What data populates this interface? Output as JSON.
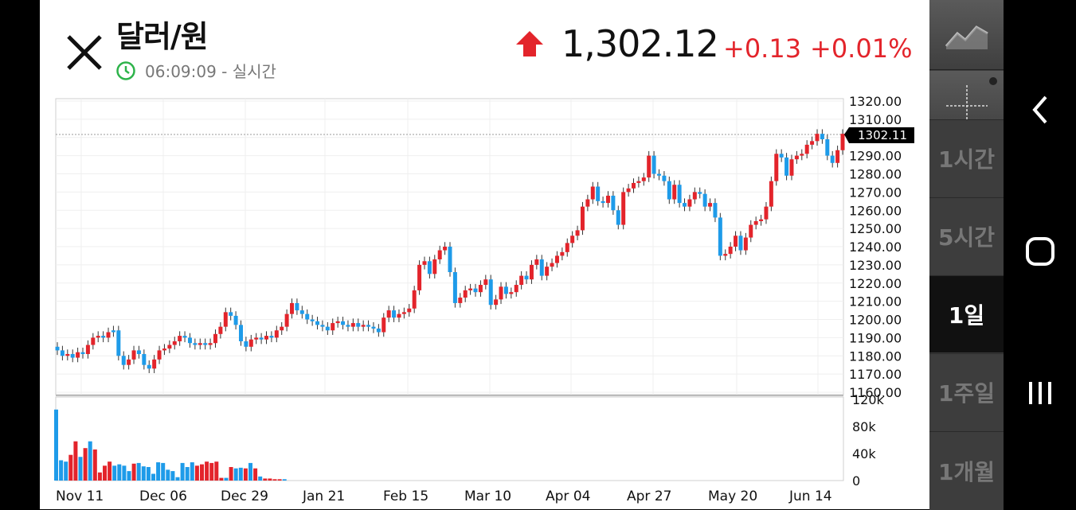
{
  "header": {
    "title": "달러/원",
    "time": "06:09:09",
    "time_suffix": " - 실시간",
    "price": "1,302.12",
    "change": "+0.13",
    "change_pct": "+0.01%"
  },
  "colors": {
    "up": "#e3242b",
    "down": "#1e9be9",
    "clock": "#2db34a"
  },
  "icons": [
    "close-icon",
    "clock-icon",
    "up-arrow-icon",
    "line-chart-icon",
    "crosshair-icon",
    "back-icon",
    "home-icon",
    "recent-apps-icon"
  ],
  "side_menu": {
    "items": [
      "1시간",
      "5시간",
      "1일",
      "1주일",
      "1개월"
    ],
    "active": "1일"
  },
  "chart_data": {
    "type": "candlestick",
    "x_tick_labels": [
      "Nov 11",
      "Dec 06",
      "Dec 29",
      "Jan 21",
      "Feb 15",
      "Mar 10",
      "Apr 04",
      "Apr 27",
      "May 20",
      "Jun 14"
    ],
    "price_axis": {
      "labels": [
        "1320.00",
        "1310.00",
        "1300.00",
        "1290.00",
        "1280.00",
        "1270.00",
        "1260.00",
        "1250.00",
        "1240.00",
        "1230.00",
        "1220.00",
        "1210.00",
        "1200.00",
        "1190.00",
        "1180.00",
        "1170.00",
        "1160.00"
      ],
      "range": [
        1160,
        1320
      ]
    },
    "last_price_label": "1302.11",
    "volume_axis": {
      "labels": [
        "120k",
        "80k",
        "40k",
        "0"
      ],
      "range": [
        0,
        120000
      ]
    },
    "price_series": [
      {
        "close": 1183,
        "up": false
      },
      {
        "close": 1180,
        "up": false
      },
      {
        "close": 1181,
        "up": true
      },
      {
        "close": 1179,
        "up": false
      },
      {
        "close": 1182,
        "up": true
      },
      {
        "close": 1181,
        "up": false
      },
      {
        "close": 1186,
        "up": true
      },
      {
        "close": 1190,
        "up": true
      },
      {
        "close": 1191,
        "up": true
      },
      {
        "close": 1190,
        "up": false
      },
      {
        "close": 1193,
        "up": true
      },
      {
        "close": 1194,
        "up": false
      },
      {
        "close": 1180,
        "up": false
      },
      {
        "close": 1175,
        "up": false
      },
      {
        "close": 1178,
        "up": true
      },
      {
        "close": 1183,
        "up": true
      },
      {
        "close": 1181,
        "up": false
      },
      {
        "close": 1175,
        "up": false
      },
      {
        "close": 1173,
        "up": false
      },
      {
        "close": 1178,
        "up": true
      },
      {
        "close": 1183,
        "up": true
      },
      {
        "close": 1184,
        "up": true
      },
      {
        "close": 1186,
        "up": true
      },
      {
        "close": 1188,
        "up": true
      },
      {
        "close": 1191,
        "up": true
      },
      {
        "close": 1190,
        "up": false
      },
      {
        "close": 1187,
        "up": false
      },
      {
        "close": 1186,
        "up": false
      },
      {
        "close": 1187,
        "up": true
      },
      {
        "close": 1186,
        "up": false
      },
      {
        "close": 1187,
        "up": true
      },
      {
        "close": 1192,
        "up": true
      },
      {
        "close": 1196,
        "up": true
      },
      {
        "close": 1204,
        "up": true
      },
      {
        "close": 1202,
        "up": false
      },
      {
        "close": 1197,
        "up": false
      },
      {
        "close": 1188,
        "up": false
      },
      {
        "close": 1185,
        "up": false
      },
      {
        "close": 1189,
        "up": true
      },
      {
        "close": 1190,
        "up": true
      },
      {
        "close": 1189,
        "up": false
      },
      {
        "close": 1191,
        "up": true
      },
      {
        "close": 1190,
        "up": false
      },
      {
        "close": 1194,
        "up": true
      },
      {
        "close": 1196,
        "up": true
      },
      {
        "close": 1203,
        "up": true
      },
      {
        "close": 1209,
        "up": true
      },
      {
        "close": 1205,
        "up": false
      },
      {
        "close": 1203,
        "up": false
      },
      {
        "close": 1200,
        "up": false
      },
      {
        "close": 1199,
        "up": false
      },
      {
        "close": 1197,
        "up": false
      },
      {
        "close": 1196,
        "up": false
      },
      {
        "close": 1194,
        "up": false
      },
      {
        "close": 1198,
        "up": true
      },
      {
        "close": 1199,
        "up": true
      },
      {
        "close": 1197,
        "up": false
      },
      {
        "close": 1196,
        "up": false
      },
      {
        "close": 1198,
        "up": true
      },
      {
        "close": 1196,
        "up": false
      },
      {
        "close": 1197,
        "up": true
      },
      {
        "close": 1196,
        "up": false
      },
      {
        "close": 1195,
        "up": false
      },
      {
        "close": 1193,
        "up": false
      },
      {
        "close": 1201,
        "up": true
      },
      {
        "close": 1205,
        "up": true
      },
      {
        "close": 1201,
        "up": false
      },
      {
        "close": 1203,
        "up": true
      },
      {
        "close": 1204,
        "up": true
      },
      {
        "close": 1206,
        "up": true
      },
      {
        "close": 1216,
        "up": true
      },
      {
        "close": 1230,
        "up": true
      },
      {
        "close": 1232,
        "up": true
      },
      {
        "close": 1225,
        "up": false
      },
      {
        "close": 1233,
        "up": true
      },
      {
        "close": 1238,
        "up": true
      },
      {
        "close": 1240,
        "up": true
      },
      {
        "close": 1226,
        "up": false
      },
      {
        "close": 1209,
        "up": false
      },
      {
        "close": 1212,
        "up": true
      },
      {
        "close": 1216,
        "up": true
      },
      {
        "close": 1217,
        "up": true
      },
      {
        "close": 1215,
        "up": false
      },
      {
        "close": 1219,
        "up": true
      },
      {
        "close": 1222,
        "up": true
      },
      {
        "close": 1208,
        "up": false
      },
      {
        "close": 1211,
        "up": true
      },
      {
        "close": 1218,
        "up": true
      },
      {
        "close": 1214,
        "up": false
      },
      {
        "close": 1215,
        "up": true
      },
      {
        "close": 1219,
        "up": true
      },
      {
        "close": 1224,
        "up": true
      },
      {
        "close": 1222,
        "up": false
      },
      {
        "close": 1230,
        "up": true
      },
      {
        "close": 1233,
        "up": true
      },
      {
        "close": 1224,
        "up": false
      },
      {
        "close": 1229,
        "up": true
      },
      {
        "close": 1231,
        "up": true
      },
      {
        "close": 1235,
        "up": true
      },
      {
        "close": 1237,
        "up": true
      },
      {
        "close": 1242,
        "up": true
      },
      {
        "close": 1246,
        "up": true
      },
      {
        "close": 1249,
        "up": true
      },
      {
        "close": 1262,
        "up": true
      },
      {
        "close": 1266,
        "up": true
      },
      {
        "close": 1273,
        "up": true
      },
      {
        "close": 1265,
        "up": false
      },
      {
        "close": 1264,
        "up": false
      },
      {
        "close": 1268,
        "up": true
      },
      {
        "close": 1260,
        "up": false
      },
      {
        "close": 1252,
        "up": false
      },
      {
        "close": 1270,
        "up": true
      },
      {
        "close": 1272,
        "up": true
      },
      {
        "close": 1275,
        "up": true
      },
      {
        "close": 1276,
        "up": true
      },
      {
        "close": 1278,
        "up": true
      },
      {
        "close": 1290,
        "up": true
      },
      {
        "close": 1280,
        "up": false
      },
      {
        "close": 1279,
        "up": false
      },
      {
        "close": 1276,
        "up": false
      },
      {
        "close": 1266,
        "up": false
      },
      {
        "close": 1274,
        "up": true
      },
      {
        "close": 1264,
        "up": false
      },
      {
        "close": 1262,
        "up": false
      },
      {
        "close": 1266,
        "up": true
      },
      {
        "close": 1270,
        "up": true
      },
      {
        "close": 1269,
        "up": false
      },
      {
        "close": 1262,
        "up": false
      },
      {
        "close": 1264,
        "up": true
      },
      {
        "close": 1256,
        "up": false
      },
      {
        "close": 1235,
        "up": false
      },
      {
        "close": 1236,
        "up": true
      },
      {
        "close": 1240,
        "up": true
      },
      {
        "close": 1246,
        "up": true
      },
      {
        "close": 1238,
        "up": false
      },
      {
        "close": 1245,
        "up": true
      },
      {
        "close": 1252,
        "up": true
      },
      {
        "close": 1254,
        "up": true
      },
      {
        "close": 1255,
        "up": true
      },
      {
        "close": 1262,
        "up": true
      },
      {
        "close": 1276,
        "up": true
      },
      {
        "close": 1291,
        "up": true
      },
      {
        "close": 1289,
        "up": false
      },
      {
        "close": 1279,
        "up": false
      },
      {
        "close": 1288,
        "up": true
      },
      {
        "close": 1290,
        "up": true
      },
      {
        "close": 1291,
        "up": true
      },
      {
        "close": 1296,
        "up": true
      },
      {
        "close": 1298,
        "up": true
      },
      {
        "close": 1302,
        "up": true
      },
      {
        "close": 1299,
        "up": false
      },
      {
        "close": 1290,
        "up": false
      },
      {
        "close": 1286,
        "up": false
      },
      {
        "close": 1293,
        "up": true
      },
      {
        "close": 1302,
        "up": true
      }
    ],
    "volume_series": [
      {
        "value": 105000,
        "up": false
      },
      {
        "value": 30000,
        "up": false
      },
      {
        "value": 28000,
        "up": false
      },
      {
        "value": 38000,
        "up": true
      },
      {
        "value": 58000,
        "up": true
      },
      {
        "value": 35000,
        "up": false
      },
      {
        "value": 48000,
        "up": true
      },
      {
        "value": 58000,
        "up": false
      },
      {
        "value": 46000,
        "up": true
      },
      {
        "value": 12000,
        "up": true
      },
      {
        "value": 22000,
        "up": true
      },
      {
        "value": 28000,
        "up": true
      },
      {
        "value": 22000,
        "up": false
      },
      {
        "value": 24000,
        "up": false
      },
      {
        "value": 22000,
        "up": false
      },
      {
        "value": 14000,
        "up": false
      },
      {
        "value": 25000,
        "up": true
      },
      {
        "value": 26000,
        "up": false
      },
      {
        "value": 21000,
        "up": false
      },
      {
        "value": 20000,
        "up": false
      },
      {
        "value": 10000,
        "up": false
      },
      {
        "value": 27000,
        "up": false
      },
      {
        "value": 26000,
        "up": false
      },
      {
        "value": 16000,
        "up": false
      },
      {
        "value": 14000,
        "up": false
      },
      {
        "value": 5000,
        "up": false
      },
      {
        "value": 26000,
        "up": false
      },
      {
        "value": 20000,
        "up": false
      },
      {
        "value": 27000,
        "up": false
      },
      {
        "value": 22000,
        "up": true
      },
      {
        "value": 24000,
        "up": true
      },
      {
        "value": 28000,
        "up": true
      },
      {
        "value": 26000,
        "up": true
      },
      {
        "value": 28000,
        "up": true
      },
      {
        "value": 4000,
        "up": true
      },
      {
        "value": 4000,
        "up": false
      },
      {
        "value": 20000,
        "up": true
      },
      {
        "value": 18000,
        "up": false
      },
      {
        "value": 19000,
        "up": false
      },
      {
        "value": 18000,
        "up": true
      },
      {
        "value": 26000,
        "up": false
      },
      {
        "value": 18000,
        "up": true
      },
      {
        "value": 6000,
        "up": false
      },
      {
        "value": 3000,
        "up": true
      },
      {
        "value": 3000,
        "up": true
      },
      {
        "value": 2000,
        "up": true
      },
      {
        "value": 2000,
        "up": true
      },
      {
        "value": 2000,
        "up": false
      }
    ]
  }
}
